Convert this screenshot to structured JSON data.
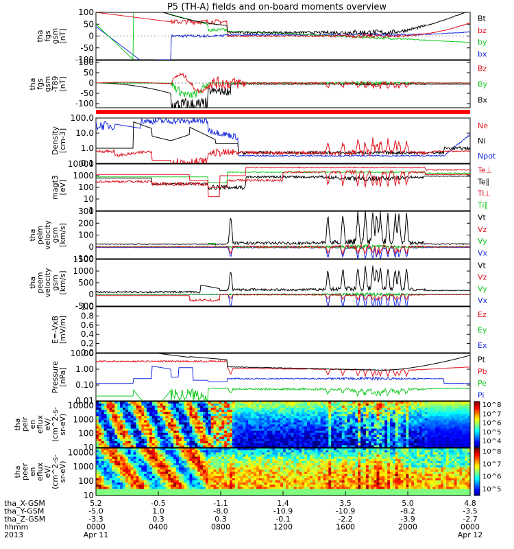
{
  "title": "P5 (TH-A) fields and on-board moments overview",
  "colors": {
    "black": "#000000",
    "red": "#e0141e",
    "green": "#12c81e",
    "blue": "#1428dc",
    "flag": "#ff0000"
  },
  "chart_data": [
    {
      "type": "line",
      "ylabel": [
        "tha",
        "fgs",
        "gsm",
        "[nT]"
      ],
      "yticks": [
        "100",
        "50",
        "0",
        "-50",
        "-100"
      ],
      "ylim": [
        -100,
        100
      ],
      "series": [
        {
          "name": "Bt",
          "color": "black"
        },
        {
          "name": "bz",
          "color": "red"
        },
        {
          "name": "by",
          "color": "green"
        },
        {
          "name": "bx",
          "color": "blue"
        }
      ]
    },
    {
      "type": "line",
      "ylabel": [
        "tha",
        "fgs",
        "gsm",
        "-T89",
        "[nT]"
      ],
      "yticks": [
        "100",
        "50",
        "0",
        "-50",
        "-100"
      ],
      "ylim": [
        -120,
        110
      ],
      "series": [
        {
          "name": "Bz",
          "color": "red"
        },
        {
          "name": "By",
          "color": "green"
        },
        {
          "name": "Bx",
          "color": "black"
        }
      ]
    },
    {
      "type": "line",
      "scale": "log",
      "ylabel": [
        "Density",
        "[cm-3]"
      ],
      "yticks": [
        "100.0",
        "10.0",
        "1.0",
        "0.1"
      ],
      "ylim": [
        0.1,
        100
      ],
      "series": [
        {
          "name": "Ne",
          "color": "red"
        },
        {
          "name": "Ni",
          "color": "black"
        },
        {
          "name": "Npot",
          "color": "blue"
        }
      ]
    },
    {
      "type": "line",
      "scale": "log",
      "ylabel": [
        "magt3",
        "[eV]"
      ],
      "yticks": [
        "10000",
        "1000",
        "100",
        "10",
        "1"
      ],
      "ylim": [
        1,
        10000
      ],
      "series": [
        {
          "name": "Te⊥",
          "color": "red"
        },
        {
          "name": "Te∥",
          "color": "black"
        },
        {
          "name": "Ti⊥",
          "color": "red"
        },
        {
          "name": "Ti∥",
          "color": "green"
        }
      ]
    },
    {
      "type": "line",
      "ylabel": [
        "tha",
        "peim",
        "velocity",
        "gsm",
        "[km/s]"
      ],
      "yticks": [
        "300",
        "200",
        "100",
        "0",
        "-100"
      ],
      "ylim": [
        -100,
        300
      ],
      "series": [
        {
          "name": "Vt",
          "color": "black"
        },
        {
          "name": "Vz",
          "color": "red"
        },
        {
          "name": "Vy",
          "color": "green"
        },
        {
          "name": "Vx",
          "color": "blue"
        }
      ]
    },
    {
      "type": "line",
      "ylabel": [
        "tha",
        "peem",
        "velocity",
        "gsm",
        "[km/s]"
      ],
      "yticks": [
        "1500",
        "1000",
        "500",
        "0",
        "-500"
      ],
      "ylim": [
        -500,
        1500
      ],
      "series": [
        {
          "name": "Vt",
          "color": "black"
        },
        {
          "name": "Vz",
          "color": "red"
        },
        {
          "name": "Vy",
          "color": "green"
        },
        {
          "name": "Vx",
          "color": "blue"
        }
      ]
    },
    {
      "type": "line",
      "ylabel": [
        "E=-VxB",
        "[mV/m]"
      ],
      "yticks": [
        "1.0",
        "0.8",
        "0.6",
        "0.4",
        "0.2",
        "0.0"
      ],
      "ylim": [
        0,
        1
      ],
      "series": [
        {
          "name": "Ez",
          "color": "red"
        },
        {
          "name": "Ey",
          "color": "green"
        },
        {
          "name": "Ex",
          "color": "blue"
        }
      ]
    },
    {
      "type": "line",
      "scale": "log",
      "ylabel": [
        "Pressure",
        "[nPa]"
      ],
      "yticks": [
        "10.00",
        "1.00",
        "0.10",
        "0.01"
      ],
      "ylim": [
        0.01,
        10
      ],
      "series": [
        {
          "name": "Pt",
          "color": "black"
        },
        {
          "name": "Pb",
          "color": "red"
        },
        {
          "name": "Pe",
          "color": "green"
        },
        {
          "name": "Pi",
          "color": "blue"
        }
      ]
    },
    {
      "type": "heatmap",
      "scale": "log",
      "ylabel": [
        "tha",
        "peir",
        "en",
        "eflux",
        "eV/",
        "(cm^2-s-",
        "sr-eV)"
      ],
      "yticks": [
        "10000",
        "1000",
        "100",
        "10"
      ],
      "ylim": [
        10,
        20000
      ],
      "colorbar": {
        "ticks": [
          "10^8",
          "10^7",
          "10^6",
          "10^5",
          "10^4"
        ]
      }
    },
    {
      "type": "heatmap",
      "scale": "log",
      "ylabel": [
        "tha",
        "peer",
        "en",
        "eflux",
        "eV/",
        "(cm^2-s-",
        "sr-eV)"
      ],
      "yticks": [
        "10000",
        "1000",
        "100",
        "10"
      ],
      "ylim": [
        10,
        20000
      ],
      "colorbar": {
        "ticks": [
          "10^8",
          "10^7",
          "10^6",
          "10^5"
        ]
      }
    }
  ],
  "x_axis": {
    "rows": [
      {
        "label": "tha_X-GSM",
        "values": [
          "5.2",
          "-0.5",
          "-1.1",
          "1.4",
          "3.5",
          "5.0",
          "4.8"
        ]
      },
      {
        "label": "tha_Y-GSM",
        "values": [
          "-5.0",
          "1.0",
          "-8.0",
          "-10.9",
          "-10.9",
          "-8.2",
          "-3.5"
        ]
      },
      {
        "label": "tha_Z-GSM",
        "values": [
          "-3.3",
          "0.3",
          "0.3",
          "-0.1",
          "-2.2",
          "-3.9",
          "-2.7"
        ]
      },
      {
        "label": "hhmm",
        "values": [
          "0000",
          "0400",
          "0800",
          "1200",
          "1600",
          "2000",
          "0000"
        ]
      },
      {
        "label": "2013",
        "values": [
          "Apr 11",
          "",
          "",
          "",
          "",
          "",
          "Apr 12"
        ]
      }
    ]
  }
}
